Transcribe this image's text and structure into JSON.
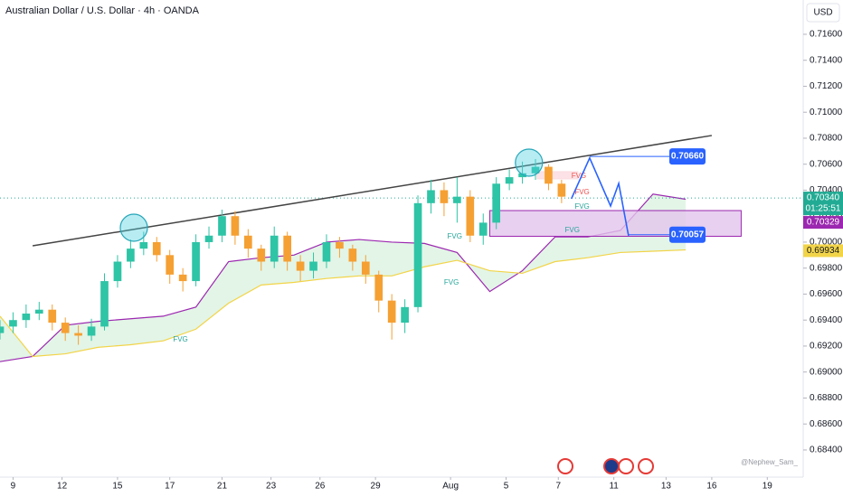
{
  "chart_data": {
    "type": "candlestick",
    "title": "Australian Dollar / U.S. Dollar · 4h · OANDA",
    "currency": "USD",
    "watermark": "@Nephew_Sam_",
    "xlim": [
      0,
      246
    ],
    "ylim": [
      0.68191,
      0.71864
    ],
    "xticks": [
      {
        "value": 4,
        "label": "9"
      },
      {
        "value": 19,
        "label": "12"
      },
      {
        "value": 36,
        "label": "15"
      },
      {
        "value": 52,
        "label": "17"
      },
      {
        "value": 68,
        "label": "21"
      },
      {
        "value": 83,
        "label": "23"
      },
      {
        "value": 98,
        "label": "26"
      },
      {
        "value": 115,
        "label": "29"
      },
      {
        "value": 138,
        "label": "Aug"
      },
      {
        "value": 155,
        "label": "5"
      },
      {
        "value": 171,
        "label": "7"
      },
      {
        "value": 188,
        "label": "11"
      },
      {
        "value": 204,
        "label": "13"
      },
      {
        "value": 218,
        "label": "16"
      },
      {
        "value": 235,
        "label": "19"
      }
    ],
    "yticks": [
      {
        "value": 0.684,
        "label": "0.68400"
      },
      {
        "value": 0.686,
        "label": "0.68600"
      },
      {
        "value": 0.688,
        "label": "0.68800"
      },
      {
        "value": 0.69,
        "label": "0.69000"
      },
      {
        "value": 0.692,
        "label": "0.69200"
      },
      {
        "value": 0.694,
        "label": "0.69400"
      },
      {
        "value": 0.696,
        "label": "0.69600"
      },
      {
        "value": 0.698,
        "label": "0.69800"
      },
      {
        "value": 0.7,
        "label": "0.70000"
      },
      {
        "value": 0.702,
        "label": "0.70200"
      },
      {
        "value": 0.704,
        "label": "0.70400"
      },
      {
        "value": 0.706,
        "label": "0.70600"
      },
      {
        "value": 0.708,
        "label": "0.70800"
      },
      {
        "value": 0.71,
        "label": "0.71000"
      },
      {
        "value": 0.712,
        "label": "0.71200"
      },
      {
        "value": 0.714,
        "label": "0.71400"
      },
      {
        "value": 0.716,
        "label": "0.71600"
      }
    ],
    "up_color": "#2ec4a6",
    "down_color": "#f5a033",
    "candles": {
      "x": [
        0,
        4,
        8,
        12,
        16,
        20,
        24,
        28,
        32,
        36,
        40,
        44,
        48,
        52,
        56,
        60,
        64,
        68,
        72,
        76,
        80,
        84,
        88,
        92,
        96,
        100,
        104,
        108,
        112,
        116,
        120,
        124,
        128,
        132,
        136,
        140,
        144,
        148,
        152,
        156,
        160,
        164,
        168,
        172
      ],
      "open": [
        0.693,
        0.6935,
        0.694,
        0.6945,
        0.6948,
        0.6938,
        0.693,
        0.6928,
        0.6935,
        0.697,
        0.6985,
        0.6995,
        0.7,
        0.699,
        0.6975,
        0.697,
        0.7,
        0.7005,
        0.702,
        0.7005,
        0.6995,
        0.6985,
        0.7005,
        0.6985,
        0.6978,
        0.6985,
        0.7,
        0.6995,
        0.6985,
        0.6975,
        0.6955,
        0.6938,
        0.695,
        0.703,
        0.704,
        0.703,
        0.7035,
        0.7005,
        0.7015,
        0.7045,
        0.705,
        0.7053,
        0.7058,
        0.7045
      ],
      "high": [
        0.694,
        0.6946,
        0.6952,
        0.6954,
        0.6952,
        0.6942,
        0.6936,
        0.6941,
        0.6976,
        0.699,
        0.7002,
        0.7008,
        0.7004,
        0.6994,
        0.698,
        0.7006,
        0.7012,
        0.7025,
        0.7024,
        0.701,
        0.6998,
        0.7012,
        0.7008,
        0.699,
        0.6992,
        0.7006,
        0.7004,
        0.6998,
        0.699,
        0.6978,
        0.696,
        0.6956,
        0.7036,
        0.7048,
        0.7046,
        0.705,
        0.704,
        0.7022,
        0.705,
        0.7056,
        0.7062,
        0.7064,
        0.706,
        0.7048
      ],
      "low": [
        0.6925,
        0.693,
        0.6934,
        0.694,
        0.6932,
        0.6924,
        0.6921,
        0.6924,
        0.6932,
        0.6965,
        0.698,
        0.699,
        0.6985,
        0.6968,
        0.6962,
        0.6966,
        0.6995,
        0.7,
        0.6998,
        0.6988,
        0.6978,
        0.698,
        0.6978,
        0.697,
        0.6972,
        0.698,
        0.6988,
        0.6978,
        0.6968,
        0.6946,
        0.6925,
        0.693,
        0.6946,
        0.7022,
        0.702,
        0.7015,
        0.7,
        0.6998,
        0.701,
        0.704,
        0.7045,
        0.7048,
        0.704,
        0.703
      ],
      "close": [
        0.6935,
        0.694,
        0.6945,
        0.6948,
        0.6938,
        0.693,
        0.6928,
        0.6935,
        0.697,
        0.6985,
        0.6995,
        0.7,
        0.699,
        0.6975,
        0.697,
        0.7,
        0.7005,
        0.702,
        0.7005,
        0.6995,
        0.6985,
        0.7005,
        0.6985,
        0.6978,
        0.6985,
        0.7,
        0.6995,
        0.6985,
        0.6975,
        0.6955,
        0.6938,
        0.695,
        0.703,
        0.704,
        0.703,
        0.7035,
        0.7005,
        0.7015,
        0.7045,
        0.705,
        0.7053,
        0.7058,
        0.7045,
        0.7035
      ]
    },
    "cloud": {
      "x": [
        0,
        10,
        20,
        30,
        40,
        50,
        60,
        70,
        80,
        90,
        100,
        110,
        120,
        130,
        140,
        150,
        160,
        170,
        180,
        190,
        200,
        210
      ],
      "fill": "#c8ecd0",
      "series": [
        {
          "color": "#9c27b0",
          "values": [
            0.6908,
            0.6912,
            0.6936,
            0.6939,
            0.6941,
            0.6943,
            0.695,
            0.6985,
            0.6988,
            0.699,
            0.7,
            0.7002,
            0.7,
            0.6999,
            0.6992,
            0.6962,
            0.6978,
            0.7004,
            0.7004,
            0.7009,
            0.7037,
            0.7033
          ]
        },
        {
          "color": "#f2d448",
          "values": [
            0.6943,
            0.6912,
            0.6914,
            0.6919,
            0.6921,
            0.6924,
            0.6933,
            0.6953,
            0.6967,
            0.6969,
            0.6972,
            0.6974,
            0.6974,
            0.6981,
            0.6986,
            0.6978,
            0.6976,
            0.6985,
            0.6988,
            0.6992,
            0.6993,
            0.6994
          ]
        }
      ]
    },
    "trendline": {
      "x": [
        10,
        218
      ],
      "values": [
        0.69972,
        0.70821
      ],
      "color": "#444444"
    },
    "zones": [
      {
        "x0": 150,
        "x1": 227,
        "top": 0.70243,
        "bottom": 0.70045,
        "fill": "#e2c4ec",
        "stroke": "#9c27b0"
      },
      {
        "x0": 164.5,
        "x1": 177,
        "top": 0.70543,
        "bottom": 0.70487,
        "fill": "#fbdbe0",
        "stroke": "#fbdbe0"
      }
    ],
    "fvg_labels": [
      {
        "text": "FVG",
        "x": 175,
        "value": 0.70508,
        "color": "#ef5350"
      },
      {
        "text": "FVG",
        "x": 176,
        "value": 0.70383,
        "color": "#ef5350"
      },
      {
        "text": "FVG",
        "x": 176,
        "value": 0.70271,
        "color": "#26a69a"
      },
      {
        "text": "FVG",
        "x": 173,
        "value": 0.7009,
        "color": "#26a69a"
      },
      {
        "text": "FVG",
        "x": 137,
        "value": 0.70042,
        "color": "#26a69a"
      },
      {
        "text": "FVG",
        "x": 136,
        "value": 0.69687,
        "color": "#26a69a"
      },
      {
        "text": "FVG",
        "x": 53,
        "value": 0.69249,
        "color": "#26a69a"
      }
    ],
    "highlights": [
      {
        "x": 41,
        "value": 0.70111
      },
      {
        "x": 162,
        "value": 0.70612
      }
    ],
    "projection": {
      "x": [
        175,
        180.6,
        187,
        189.5,
        192.5
      ],
      "values": [
        0.70334,
        0.70648,
        0.70278,
        0.70452,
        0.70049
      ],
      "color": "#2962ff"
    },
    "levels": [
      {
        "label": "0.70660",
        "value": 0.7066,
        "x0": 180.6,
        "x1": 205
      },
      {
        "label": "0.70057",
        "value": 0.70057,
        "x0": 192.5,
        "x1": 205
      }
    ],
    "price_tags": [
      {
        "label": "0.70340",
        "value": 0.7034,
        "color": "#22ab94",
        "countdown": "01:25:51"
      },
      {
        "label": "0.70329",
        "value": 0.70329,
        "color": "#9c27b0"
      },
      {
        "label": "0.69934",
        "value": 0.69934,
        "color": "#f2d448"
      }
    ]
  }
}
